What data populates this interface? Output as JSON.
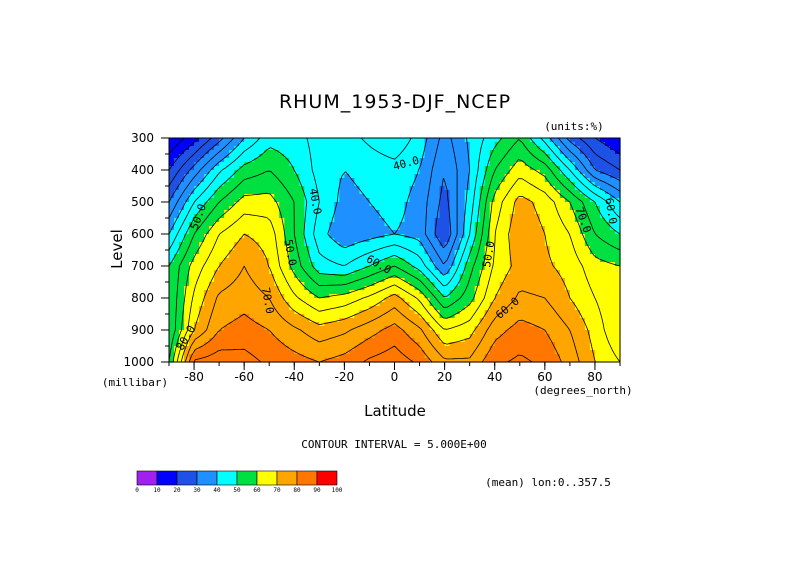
{
  "chart_data": {
    "type": "heatmap",
    "title": "RHUM_1953-DJF_NCEP",
    "units": "(units:%)",
    "xlabel": "Latitude",
    "ylabel": "Level",
    "x_unit": "(degrees_north)",
    "y_unit": "(millibar)",
    "xlim": [
      -90,
      90
    ],
    "ylim": [
      1000,
      300
    ],
    "x_ticks": [
      -80,
      -60,
      -40,
      -20,
      0,
      20,
      40,
      60,
      80
    ],
    "x_tick_labels": [
      "-80",
      "-60",
      "-40",
      "-20",
      "0",
      "20",
      "40",
      "60",
      "80"
    ],
    "y_ticks": [
      300,
      400,
      500,
      600,
      700,
      800,
      900,
      1000
    ],
    "y_tick_labels": [
      "300",
      "400",
      "500",
      "600",
      "700",
      "800",
      "900",
      "1000"
    ],
    "contour_interval_text": "CONTOUR INTERVAL = 5.000E+00",
    "mean_text": "(mean) lon:0..357.5",
    "colorbar": {
      "levels": [
        0,
        10,
        20,
        30,
        40,
        50,
        60,
        70,
        80,
        90,
        100
      ],
      "labels": [
        "0",
        "10",
        "20",
        "30",
        "40",
        "50",
        "60",
        "70",
        "80",
        "90",
        "100"
      ],
      "colors": [
        "#a020f0",
        "#0000ff",
        "#1e52e6",
        "#1e90ff",
        "#00ffff",
        "#00e040",
        "#ffff00",
        "#ffa500",
        "#ff7700",
        "#ff0000"
      ]
    },
    "contour_labels": [
      "40.0",
      "40.0",
      "50.0",
      "60.0",
      "50.0",
      "70.0",
      "80.0",
      "60.0",
      "70.0",
      "60.0",
      "50.0"
    ],
    "lat": [
      -90,
      -80,
      -70,
      -60,
      -50,
      -40,
      -30,
      -20,
      -10,
      0,
      10,
      20,
      30,
      40,
      50,
      60,
      70,
      80,
      90
    ],
    "levels_mb": [
      300,
      400,
      500,
      600,
      700,
      800,
      900,
      1000
    ],
    "values": [
      [
        10,
        18,
        28,
        40,
        48,
        47,
        43,
        43,
        46,
        49,
        43,
        33,
        41,
        48,
        55,
        43,
        28,
        20,
        15
      ],
      [
        20,
        32,
        44,
        52,
        55,
        50,
        43,
        40,
        42,
        43,
        40,
        30,
        40,
        55,
        63,
        58,
        45,
        30,
        25
      ],
      [
        30,
        45,
        55,
        62,
        62,
        55,
        45,
        38,
        40,
        42,
        38,
        28,
        42,
        62,
        72,
        68,
        60,
        50,
        40
      ],
      [
        40,
        55,
        65,
        70,
        68,
        55,
        42,
        36,
        38,
        40,
        38,
        25,
        45,
        65,
        74,
        70,
        65,
        55,
        50
      ],
      [
        50,
        62,
        70,
        75,
        70,
        58,
        47,
        45,
        50,
        55,
        48,
        35,
        53,
        66,
        72,
        71,
        68,
        62,
        60
      ],
      [
        50,
        66,
        76,
        78,
        75,
        66,
        60,
        62,
        66,
        72,
        64,
        50,
        58,
        70,
        76,
        75,
        70,
        65,
        60
      ],
      [
        50,
        70,
        80,
        82,
        80,
        76,
        72,
        74,
        78,
        82,
        76,
        65,
        68,
        78,
        82,
        80,
        75,
        68,
        60
      ],
      [
        55,
        86,
        88,
        87,
        84,
        82,
        80,
        82,
        86,
        88,
        84,
        76,
        76,
        84,
        86,
        84,
        78,
        70,
        65
      ]
    ]
  }
}
